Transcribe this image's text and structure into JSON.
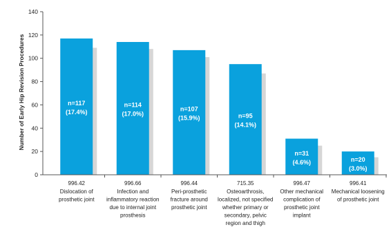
{
  "chart_data": {
    "type": "bar",
    "title": "",
    "ylabel": "Number of Early Hip Revision Procedures",
    "xlabel": "",
    "ylim": [
      0,
      140
    ],
    "yticks": [
      0,
      20,
      40,
      60,
      80,
      100,
      120,
      140
    ],
    "grid": false,
    "colors": {
      "bar": "#0aa1dd",
      "shadow": "#d6d6d6",
      "axis": "#555555"
    },
    "categories": [
      {
        "code": "996.42",
        "lines": [
          "Dislocation of",
          "prosthetic joint"
        ]
      },
      {
        "code": "996.66",
        "lines": [
          "Infection and",
          "inflammatory reaction",
          "due to internal joint",
          "prosthesis"
        ]
      },
      {
        "code": "996.44",
        "lines": [
          "Peri-prosthetic",
          "fracture around",
          "prosthetic joint"
        ]
      },
      {
        "code": "715.35",
        "lines": [
          "Osteoarthrosis,",
          "localized, not specified",
          "whether primary or",
          "secondary, pelvic",
          "region and thigh"
        ]
      },
      {
        "code": "996.47",
        "lines": [
          "Other mechanical",
          "complication of",
          "prosthetic joint",
          "implant"
        ]
      },
      {
        "code": "996.41",
        "lines": [
          "Mechanical loosening",
          "of prosthetic joint"
        ]
      }
    ],
    "values": [
      117,
      114,
      107,
      95,
      31,
      20
    ],
    "shadow_values": [
      109,
      108,
      101,
      87,
      25,
      15
    ],
    "data_labels": [
      [
        "n=117",
        "(17.4%)"
      ],
      [
        "n=114",
        "(17.0%)"
      ],
      [
        "n=107",
        "(15.9%)"
      ],
      [
        "n=95",
        "(14.1%)"
      ],
      [
        "n=31",
        "(4.6%)"
      ],
      [
        "n=20",
        "(3.0%)"
      ]
    ]
  }
}
